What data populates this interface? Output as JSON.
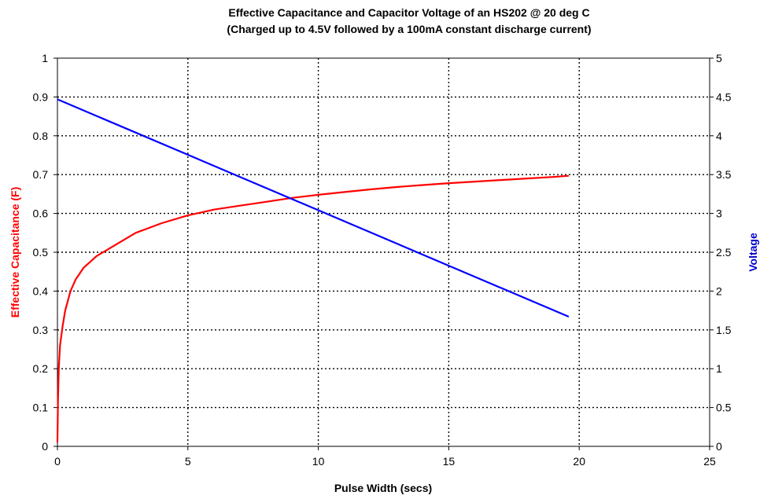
{
  "chart_data": {
    "type": "line",
    "title": "Effective Capacitance and Capacitor Voltage of an HS202 @ 20 deg C",
    "subtitle": "(Charged up to 4.5V followed by a 100mA constant discharge current)",
    "xlabel": "Pulse Width (secs)",
    "ylabel_left": "Effective Capacitance (F)",
    "ylabel_right": "Voltage",
    "xlim": [
      0,
      25
    ],
    "ylim_left": [
      0,
      1
    ],
    "ylim_right": [
      0,
      5
    ],
    "xticks": [
      "0",
      "5",
      "10",
      "15",
      "20",
      "25"
    ],
    "yticks_left": [
      "0",
      "0.1",
      "0.2",
      "0.3",
      "0.4",
      "0.5",
      "0.6",
      "0.7",
      "0.8",
      "0.9",
      "1"
    ],
    "yticks_right": [
      "0",
      "0.5",
      "1",
      "1.5",
      "2",
      "2.5",
      "3",
      "3.5",
      "4",
      "4.5",
      "5"
    ],
    "grid": true,
    "colors": {
      "capacitance": "#ff0000",
      "voltage": "#0000ff",
      "left_label": "#ff0000",
      "right_label": "#0000cc"
    },
    "series": [
      {
        "axis": "left",
        "x": [
          0,
          0.02,
          0.05,
          0.1,
          0.2,
          0.3,
          0.5,
          0.7,
          1,
          1.5,
          2,
          2.5,
          3,
          4,
          5,
          6,
          7,
          8,
          9,
          10,
          11,
          12,
          13,
          14,
          15,
          16,
          17,
          18,
          19,
          19.6
        ],
        "values": [
          0.01,
          0.12,
          0.2,
          0.26,
          0.31,
          0.35,
          0.4,
          0.43,
          0.46,
          0.49,
          0.51,
          0.53,
          0.55,
          0.575,
          0.595,
          0.61,
          0.62,
          0.63,
          0.64,
          0.648,
          0.655,
          0.662,
          0.668,
          0.673,
          0.678,
          0.682,
          0.686,
          0.69,
          0.694,
          0.697
        ]
      },
      {
        "axis": "right",
        "x": [
          0,
          19.6
        ],
        "values": [
          4.47,
          1.67
        ]
      }
    ]
  }
}
